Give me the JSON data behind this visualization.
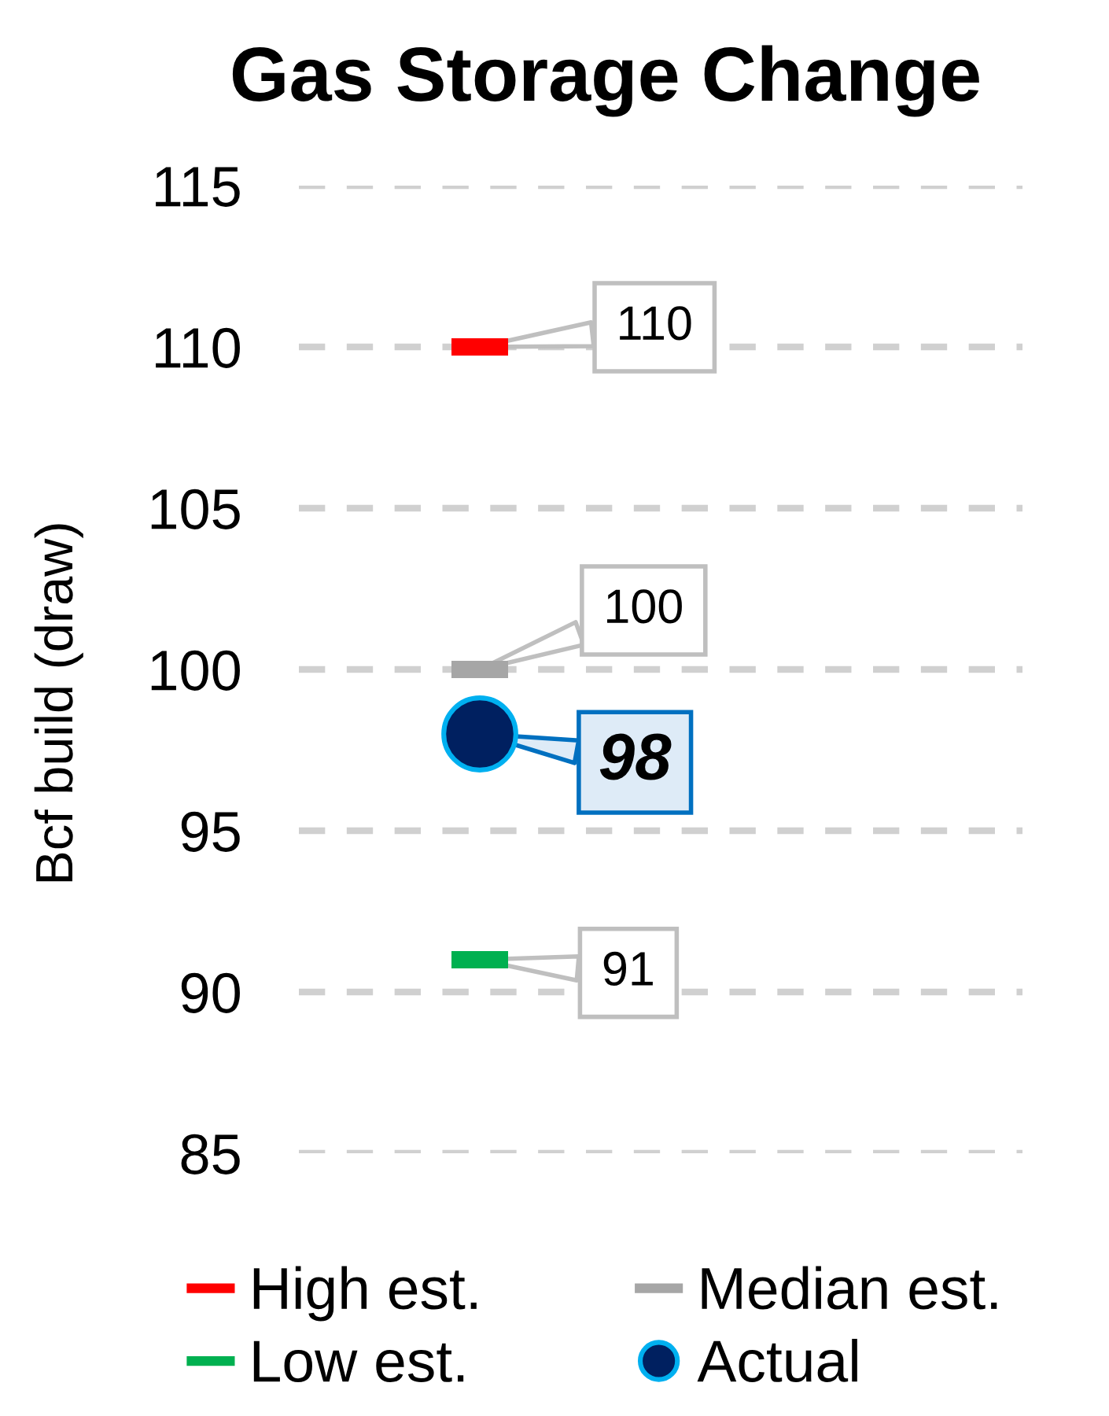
{
  "chart_data": {
    "type": "scatter",
    "title": "Gas Storage Change",
    "ylabel": "Bcf build (draw)",
    "categories": [
      null,
      null
    ],
    "series": [
      {
        "name": "High est.",
        "color": "#ff0000",
        "values": [
          110,
          null
        ]
      },
      {
        "name": "Median est.",
        "color": "#a6a6a6",
        "values": [
          100,
          null
        ]
      },
      {
        "name": "Low est.",
        "color": "#00b050",
        "values": [
          91,
          null
        ]
      },
      {
        "name": "Actual",
        "color": "#002060",
        "marker": "circle",
        "values": [
          98,
          null
        ]
      }
    ],
    "ylim": [
      85,
      115
    ],
    "yticks": [
      85,
      90,
      95,
      100,
      105,
      110,
      115
    ],
    "grid": "y",
    "legend": "bottom",
    "data_labels": true,
    "tick_labels": "y"
  }
}
